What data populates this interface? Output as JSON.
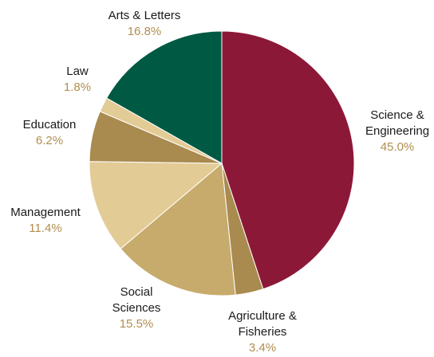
{
  "chart_data": {
    "type": "pie",
    "start_angle_deg": 0,
    "direction": "clockwise",
    "percent_color": "#b08f4f",
    "slices": [
      {
        "name_lines": [
          "Science &",
          "Engineering"
        ],
        "percent_label": "45.0%",
        "value": 45.0,
        "color": "#8c1838",
        "id": "science-engineering"
      },
      {
        "name_lines": [
          "Agriculture &",
          "Fisheries"
        ],
        "percent_label": "3.4%",
        "value": 3.4,
        "color": "#a98a4f",
        "id": "agriculture-fisheries"
      },
      {
        "name_lines": [
          "Social",
          "Sciences"
        ],
        "percent_label": "15.5%",
        "value": 15.5,
        "color": "#c7ab6c",
        "id": "social-sciences"
      },
      {
        "name_lines": [
          "Management"
        ],
        "percent_label": "11.4%",
        "value": 11.4,
        "color": "#e3cb96",
        "id": "management"
      },
      {
        "name_lines": [
          "Education"
        ],
        "percent_label": "6.2%",
        "value": 6.2,
        "color": "#a98a4f",
        "id": "education"
      },
      {
        "name_lines": [
          "Law"
        ],
        "percent_label": "1.8%",
        "value": 1.8,
        "color": "#e3cb96",
        "id": "law"
      },
      {
        "name_lines": [
          "Arts & Letters"
        ],
        "percent_label": "16.8%",
        "value": 16.8,
        "color": "#005a43",
        "id": "arts-letters"
      }
    ]
  }
}
